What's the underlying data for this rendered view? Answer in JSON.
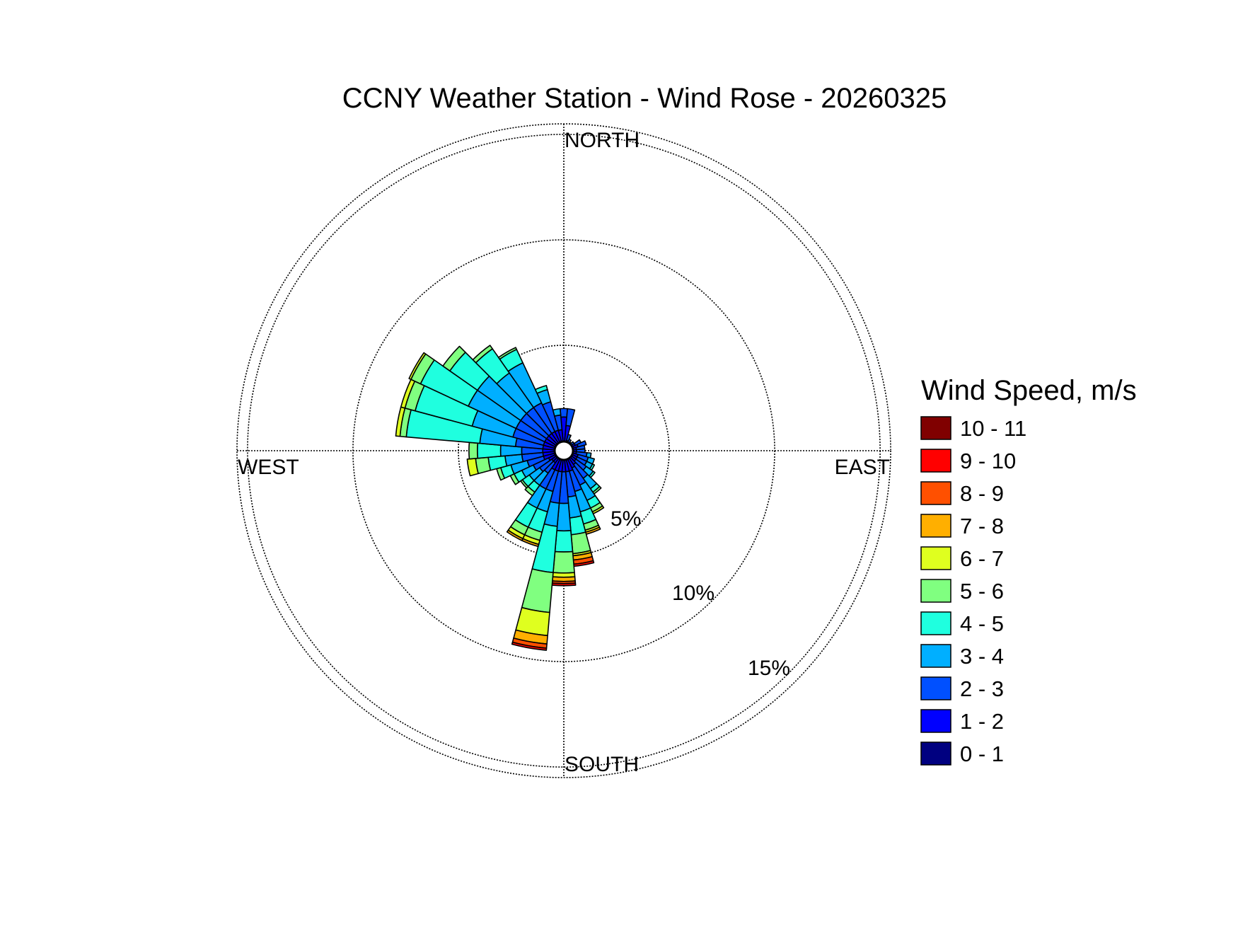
{
  "chart_data": {
    "type": "wind-rose",
    "title": "CCNY Weather Station - Wind Rose - 20260325",
    "direction_labels": {
      "north": "NORTH",
      "south": "SOUTH",
      "east": "EAST",
      "west": "WEST"
    },
    "ring_labels": [
      "5%",
      "10%",
      "15%"
    ],
    "rings": [
      5,
      10,
      15
    ],
    "rmax": 15.5,
    "grid": true,
    "legend": {
      "title": "Wind Speed, m/s",
      "placement": "right",
      "bins": [
        {
          "label": "10 - 11",
          "color": "#800000"
        },
        {
          "label": "9 - 10",
          "color": "#ff0000"
        },
        {
          "label": "8 - 9",
          "color": "#ff5000"
        },
        {
          "label": "7 - 8",
          "color": "#ffaf00"
        },
        {
          "label": "6 - 7",
          "color": "#dfff1f"
        },
        {
          "label": "5 - 6",
          "color": "#80ff80"
        },
        {
          "label": "4 - 5",
          "color": "#1fffdf"
        },
        {
          "label": "3 - 4",
          "color": "#00afff"
        },
        {
          "label": "2 - 3",
          "color": "#0050ff"
        },
        {
          "label": "1 - 2",
          "color": "#0000ff"
        },
        {
          "label": "0 - 1",
          "color": "#000080"
        }
      ]
    },
    "speed_bins": [
      "0 - 1",
      "1 - 2",
      "2 - 3",
      "3 - 4",
      "4 - 5",
      "5 - 6",
      "6 - 7",
      "7 - 8",
      "8 - 9",
      "9 - 10",
      "10 - 11"
    ],
    "sector_width_deg": 10,
    "sectors": [
      {
        "dir": 0,
        "cum": [
          0.3,
          1.6,
          2.0
        ]
      },
      {
        "dir": 10,
        "cum": [
          0.3,
          1.2,
          2.0
        ]
      },
      {
        "dir": 20,
        "cum": [
          0.3,
          0.5,
          0.8
        ]
      },
      {
        "dir": 30,
        "cum": [
          0.2,
          0.4,
          0.6
        ]
      },
      {
        "dir": 40,
        "cum": [
          0.2,
          0.4,
          0.5
        ]
      },
      {
        "dir": 50,
        "cum": [
          0.2,
          0.4,
          0.6
        ]
      },
      {
        "dir": 60,
        "cum": [
          0.2,
          0.6,
          0.9
        ]
      },
      {
        "dir": 70,
        "cum": [
          0.2,
          0.7,
          1.1
        ]
      },
      {
        "dir": 80,
        "cum": [
          0.2,
          0.6,
          1.0
        ]
      },
      {
        "dir": 90,
        "cum": [
          0.2,
          0.6,
          1.0
        ]
      },
      {
        "dir": 100,
        "cum": [
          0.2,
          0.6,
          1.1,
          1.3
        ]
      },
      {
        "dir": 110,
        "cum": [
          0.2,
          0.7,
          1.2,
          1.5
        ]
      },
      {
        "dir": 120,
        "cum": [
          0.2,
          0.7,
          1.2,
          1.5,
          1.6
        ]
      },
      {
        "dir": 130,
        "cum": [
          0.2,
          0.7,
          1.3,
          1.7,
          1.8
        ]
      },
      {
        "dir": 140,
        "cum": [
          0.2,
          0.8,
          1.6,
          2.2,
          2.4,
          2.5
        ]
      },
      {
        "dir": 150,
        "cum": [
          0.2,
          0.9,
          1.8,
          2.6,
          3.0,
          3.2,
          3.3
        ]
      },
      {
        "dir": 160,
        "cum": [
          0.2,
          1.0,
          2.0,
          3.0,
          3.6,
          3.9,
          4.0,
          4.1
        ]
      },
      {
        "dir": 170,
        "cum": [
          0.2,
          1.0,
          2.2,
          3.2,
          4.0,
          4.9,
          5.0,
          5.2,
          5.4,
          5.5
        ]
      },
      {
        "dir": 180,
        "cum": [
          0.2,
          1.0,
          2.5,
          3.8,
          4.8,
          5.8,
          6.0,
          6.2,
          6.3,
          6.4
        ]
      },
      {
        "dir": 190,
        "cum": [
          0.2,
          1.0,
          2.5,
          3.6,
          5.8,
          7.7,
          8.8,
          9.2,
          9.4,
          9.5
        ]
      },
      {
        "dir": 200,
        "cum": [
          0.2,
          1.0,
          2.0,
          3.0,
          4.0,
          4.4,
          4.6,
          4.7
        ]
      },
      {
        "dir": 210,
        "cum": [
          0.2,
          1.0,
          2.0,
          3.0,
          4.0,
          4.4,
          4.6,
          4.7
        ]
      },
      {
        "dir": 220,
        "cum": [
          0.2,
          0.7,
          1.3,
          2.0,
          2.4,
          2.6
        ]
      },
      {
        "dir": 230,
        "cum": [
          0.2,
          0.7,
          1.4,
          2.0,
          2.4,
          2.5
        ]
      },
      {
        "dir": 240,
        "cum": [
          0.2,
          0.8,
          1.6,
          2.2,
          2.6,
          2.8
        ]
      },
      {
        "dir": 250,
        "cum": [
          0.2,
          1.0,
          1.8,
          2.6,
          3.1,
          3.3
        ]
      },
      {
        "dir": 260,
        "cum": [
          0.2,
          1.0,
          2.0,
          2.8,
          3.6,
          4.2,
          4.6
        ]
      },
      {
        "dir": 270,
        "cum": [
          0.2,
          1.0,
          2.0,
          3.0,
          4.1,
          4.5
        ]
      },
      {
        "dir": 280,
        "cum": [
          0.2,
          1.0,
          2.3,
          4.0,
          7.5,
          7.8,
          8.0
        ]
      },
      {
        "dir": 290,
        "cum": [
          0.2,
          1.0,
          2.5,
          4.5,
          7.3,
          7.8,
          8.0
        ]
      },
      {
        "dir": 300,
        "cum": [
          0.2,
          1.0,
          2.5,
          5.0,
          7.5,
          8.0,
          8.1
        ]
      },
      {
        "dir": 310,
        "cum": [
          0.2,
          1.0,
          2.5,
          5.0,
          6.6,
          7.0
        ]
      },
      {
        "dir": 320,
        "cum": [
          0.2,
          1.0,
          2.5,
          4.5,
          5.9,
          6.1
        ]
      },
      {
        "dir": 330,
        "cum": [
          0.2,
          1.0,
          2.5,
          4.6,
          5.3,
          5.4
        ]
      },
      {
        "dir": 340,
        "cum": [
          0.2,
          1.0,
          2.4,
          3.0,
          3.2
        ]
      },
      {
        "dir": 350,
        "cum": [
          0.2,
          1.0,
          1.7,
          2.0
        ]
      }
    ]
  }
}
